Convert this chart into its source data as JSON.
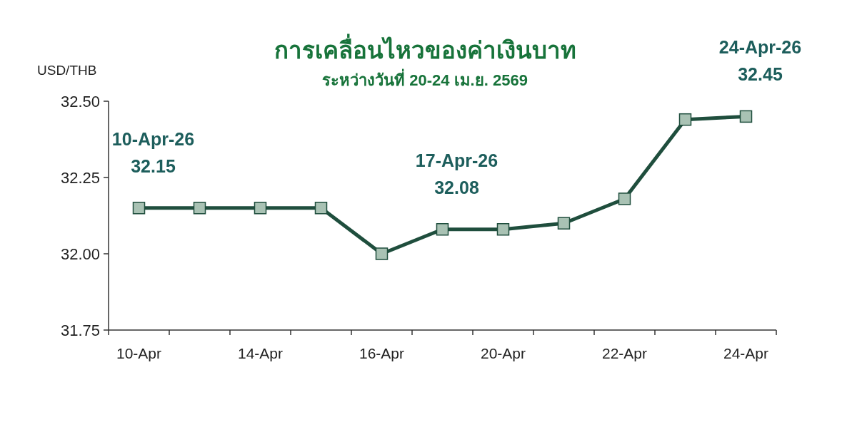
{
  "chart_data": {
    "type": "line",
    "title": "การเคลื่อนไหวของค่าเงินบาท",
    "subtitle": "ระหว่างวันที่ 20-24 เม.ย. 2569",
    "ylabel": "USD/THB",
    "categories": [
      "10-Apr",
      null,
      "14-Apr",
      null,
      "16-Apr",
      null,
      "20-Apr",
      null,
      "22-Apr",
      null,
      "24-Apr"
    ],
    "series": [
      {
        "color": "#1f4e3d",
        "values": [
          32.15,
          32.15,
          32.15,
          32.15,
          32.0,
          32.08,
          32.08,
          32.1,
          32.18,
          32.44,
          32.45
        ]
      }
    ],
    "ylim": [
      31.75,
      32.5
    ],
    "yticks": [
      31.75,
      {
        "value": 32.0,
        "label": "32.00"
      },
      32.25,
      {
        "value": 32.5,
        "label": "32.50"
      }
    ],
    "annotations": [
      {
        "text": "10-Apr-26\n32.15",
        "x": "10-Apr",
        "y": 32.15
      },
      {
        "text": "17-Apr-26\n32.08",
        "y": 32.08
      },
      {
        "text": "24-Apr-26\n32.45",
        "x": "24-Apr",
        "y": 32.45
      }
    ],
    "marker": "square",
    "line_style": "solid"
  }
}
